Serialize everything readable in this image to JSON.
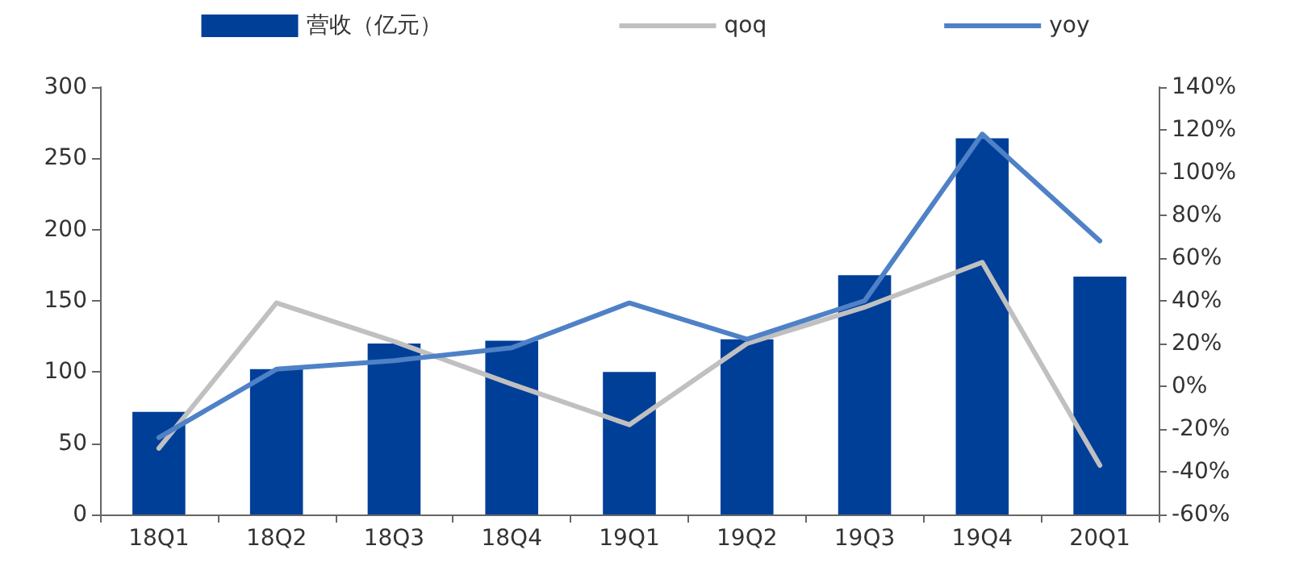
{
  "chart_data": {
    "type": "bar",
    "categories": [
      "18Q1",
      "18Q2",
      "18Q3",
      "18Q4",
      "19Q1",
      "19Q2",
      "19Q3",
      "19Q4",
      "20Q1"
    ],
    "series": [
      {
        "name": "营收（亿元）",
        "color": "#003f98",
        "values": [
          72,
          102,
          120,
          122,
          100,
          123,
          168,
          264,
          167
        ]
      },
      {
        "name": "qoq",
        "type": "line",
        "axis": "y2",
        "color": "#c0c0c0",
        "values": [
          -29,
          39,
          21,
          1,
          -18,
          20,
          37,
          58,
          -37
        ]
      },
      {
        "name": "yoy",
        "type": "line",
        "axis": "y2",
        "color": "#4f81c7",
        "values": [
          -24,
          8,
          12,
          18,
          39,
          22,
          40,
          118,
          68
        ]
      }
    ],
    "ylim": [
      0,
      300
    ],
    "yticks": [
      0,
      50,
      100,
      150,
      200,
      250,
      300
    ],
    "y2lim": [
      -60,
      140
    ],
    "y2ticks": [
      {
        "value": -60,
        "label": "-60%"
      },
      {
        "value": -40,
        "label": "-40%"
      },
      {
        "value": -20,
        "label": "-20%"
      },
      {
        "value": 0,
        "label": "0%"
      },
      {
        "value": 20,
        "label": "20%"
      },
      {
        "value": 40,
        "label": "40%"
      },
      {
        "value": 60,
        "label": "60%"
      },
      {
        "value": 80,
        "label": "80%"
      },
      {
        "value": 100,
        "label": "100%"
      },
      {
        "value": 120,
        "label": "120%"
      },
      {
        "value": 140,
        "label": "140%"
      }
    ],
    "grid": false,
    "legend": "top",
    "marker": "none",
    "line_style": "solid"
  }
}
